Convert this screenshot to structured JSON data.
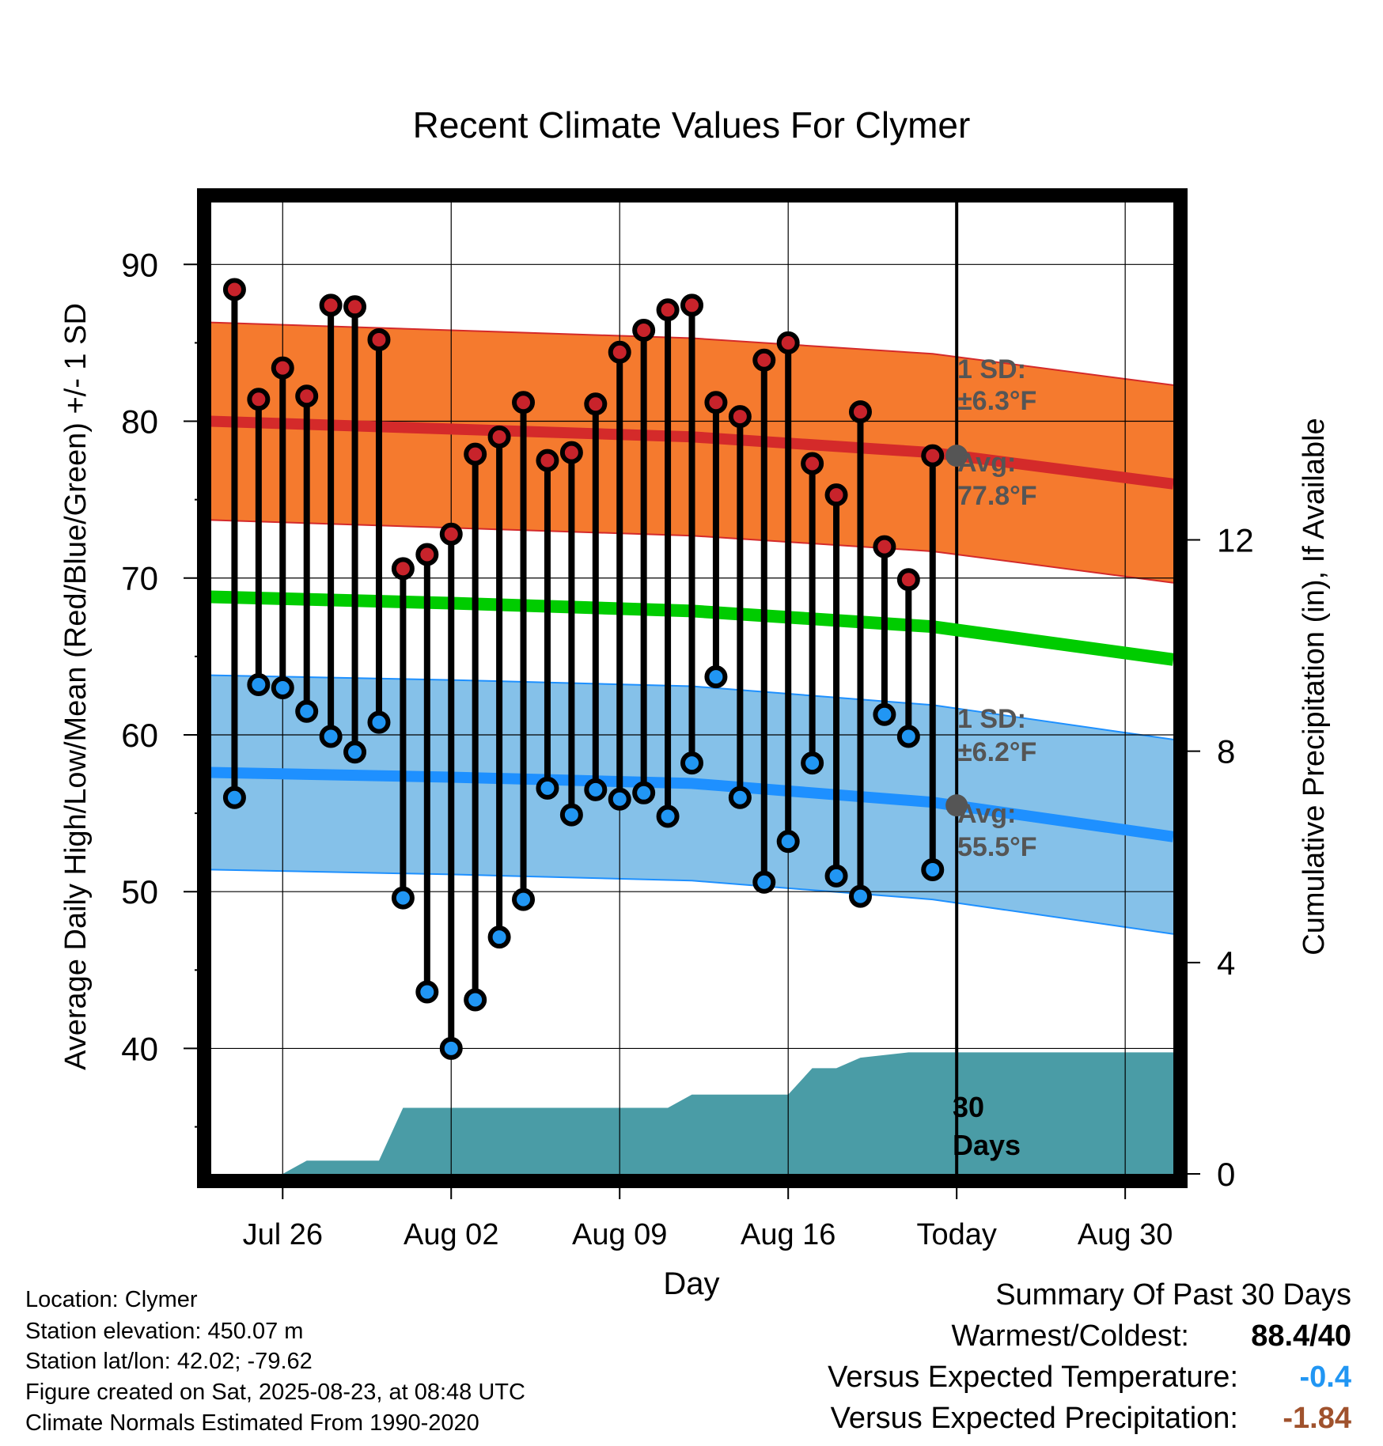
{
  "chart_data": {
    "type": "line",
    "title": "Recent Climate Values For Clymer",
    "xlabel": "Day",
    "ylabel": "Average Daily High/Low/Mean (Red/Blue/Green) +/- 1 SD",
    "y2label": "Cumulative Precipitation (in), If Available",
    "ylim": [
      32,
      94
    ],
    "y2lim": [
      0,
      18.4
    ],
    "yticks": [
      40,
      50,
      60,
      70,
      80,
      90
    ],
    "y2ticks": [
      0,
      4,
      8,
      12
    ],
    "xlim": [
      "2025-07-23",
      "2025-09-01"
    ],
    "xticks": [
      {
        "date": "2025-07-26",
        "label": "Jul 26"
      },
      {
        "date": "2025-08-02",
        "label": "Aug 02"
      },
      {
        "date": "2025-08-09",
        "label": "Aug 09"
      },
      {
        "date": "2025-08-16",
        "label": "Aug 16"
      },
      {
        "date": "2025-08-23",
        "label": "Today"
      },
      {
        "date": "2025-08-30",
        "label": "Aug 30"
      }
    ],
    "today": "2025-08-23",
    "grid": true,
    "observed": {
      "dates": [
        "2025-07-24",
        "2025-07-25",
        "2025-07-26",
        "2025-07-27",
        "2025-07-28",
        "2025-07-29",
        "2025-07-30",
        "2025-07-31",
        "2025-08-01",
        "2025-08-02",
        "2025-08-03",
        "2025-08-04",
        "2025-08-05",
        "2025-08-06",
        "2025-08-07",
        "2025-08-08",
        "2025-08-09",
        "2025-08-10",
        "2025-08-11",
        "2025-08-12",
        "2025-08-13",
        "2025-08-14",
        "2025-08-15",
        "2025-08-16",
        "2025-08-17",
        "2025-08-18",
        "2025-08-19",
        "2025-08-20",
        "2025-08-21",
        "2025-08-22"
      ],
      "high": [
        88.4,
        81.4,
        83.4,
        81.6,
        87.4,
        87.3,
        85.2,
        70.6,
        71.5,
        72.8,
        77.9,
        79.0,
        81.2,
        77.5,
        78.0,
        81.1,
        84.4,
        85.8,
        87.1,
        87.4,
        81.2,
        80.3,
        83.9,
        85.0,
        77.3,
        75.3,
        80.6,
        72.0,
        69.9,
        77.8
      ],
      "low": [
        56.0,
        63.2,
        63.0,
        61.5,
        59.9,
        58.9,
        60.8,
        49.6,
        43.6,
        40.0,
        43.1,
        47.1,
        49.5,
        56.6,
        54.9,
        56.5,
        55.9,
        56.3,
        54.8,
        58.2,
        63.7,
        56.0,
        50.6,
        53.2,
        58.2,
        51.0,
        49.7,
        61.3,
        59.9,
        51.4
      ]
    },
    "normals": {
      "dates": [
        "2025-07-23",
        "2025-08-02",
        "2025-08-12",
        "2025-08-22",
        "2025-09-01"
      ],
      "avg_high": [
        80.0,
        79.5,
        79.0,
        78.0,
        76.0
      ],
      "avg_low": [
        57.6,
        57.3,
        56.9,
        55.7,
        53.5
      ],
      "avg_mean": [
        68.8,
        68.4,
        67.9,
        66.9,
        64.8
      ],
      "sd_high": 6.3,
      "sd_low": 6.2
    },
    "precip_cumulative": {
      "dates": [
        "2025-07-23",
        "2025-07-26",
        "2025-07-27",
        "2025-07-30",
        "2025-07-31",
        "2025-08-11",
        "2025-08-12",
        "2025-08-16",
        "2025-08-17",
        "2025-08-18",
        "2025-08-19",
        "2025-08-20",
        "2025-08-21",
        "2025-09-01"
      ],
      "values": [
        0,
        0,
        0.25,
        0.25,
        1.25,
        1.25,
        1.5,
        1.5,
        2.0,
        2.0,
        2.2,
        2.25,
        2.3,
        2.3
      ]
    },
    "annotations": {
      "high_sd": "1 SD:",
      "high_sd_value": "±6.3°F",
      "high_avg": "Avg:",
      "high_avg_value": "77.8°F",
      "low_sd": "1 SD:",
      "low_sd_value": "±6.2°F",
      "low_avg": "Avg:",
      "low_avg_value": "55.5°F",
      "precip_label_1": "30",
      "precip_label_2": "Days"
    },
    "colors": {
      "high_band": "#f57a2e",
      "high_avg": "#d42a2a",
      "high_dot": "#c8232b",
      "low_band": "#85c1e9",
      "low_avg": "#1e90ff",
      "low_dot": "#2196f3",
      "mean": "#00cc00",
      "precip": "#4a9ca6"
    }
  },
  "info": {
    "location": "Location: Clymer",
    "elevation": "Station elevation: 450.07 m",
    "latlon": "Station lat/lon: 42.02; -79.62",
    "created": "Figure created on Sat, 2025-08-23, at 08:48 UTC",
    "normals": "Climate Normals Estimated From 1990-2020"
  },
  "summary": {
    "heading": "Summary Of Past 30 Days",
    "warmest_label": "Warmest/Coldest:",
    "warmest_value": "88.4/40",
    "temp_label": "Versus Expected Temperature:",
    "temp_value": "-0.4",
    "temp_color": "#2196f3",
    "precip_label": "Versus Expected Precipitation:",
    "precip_value": "-1.84",
    "precip_color": "#a0522d"
  }
}
